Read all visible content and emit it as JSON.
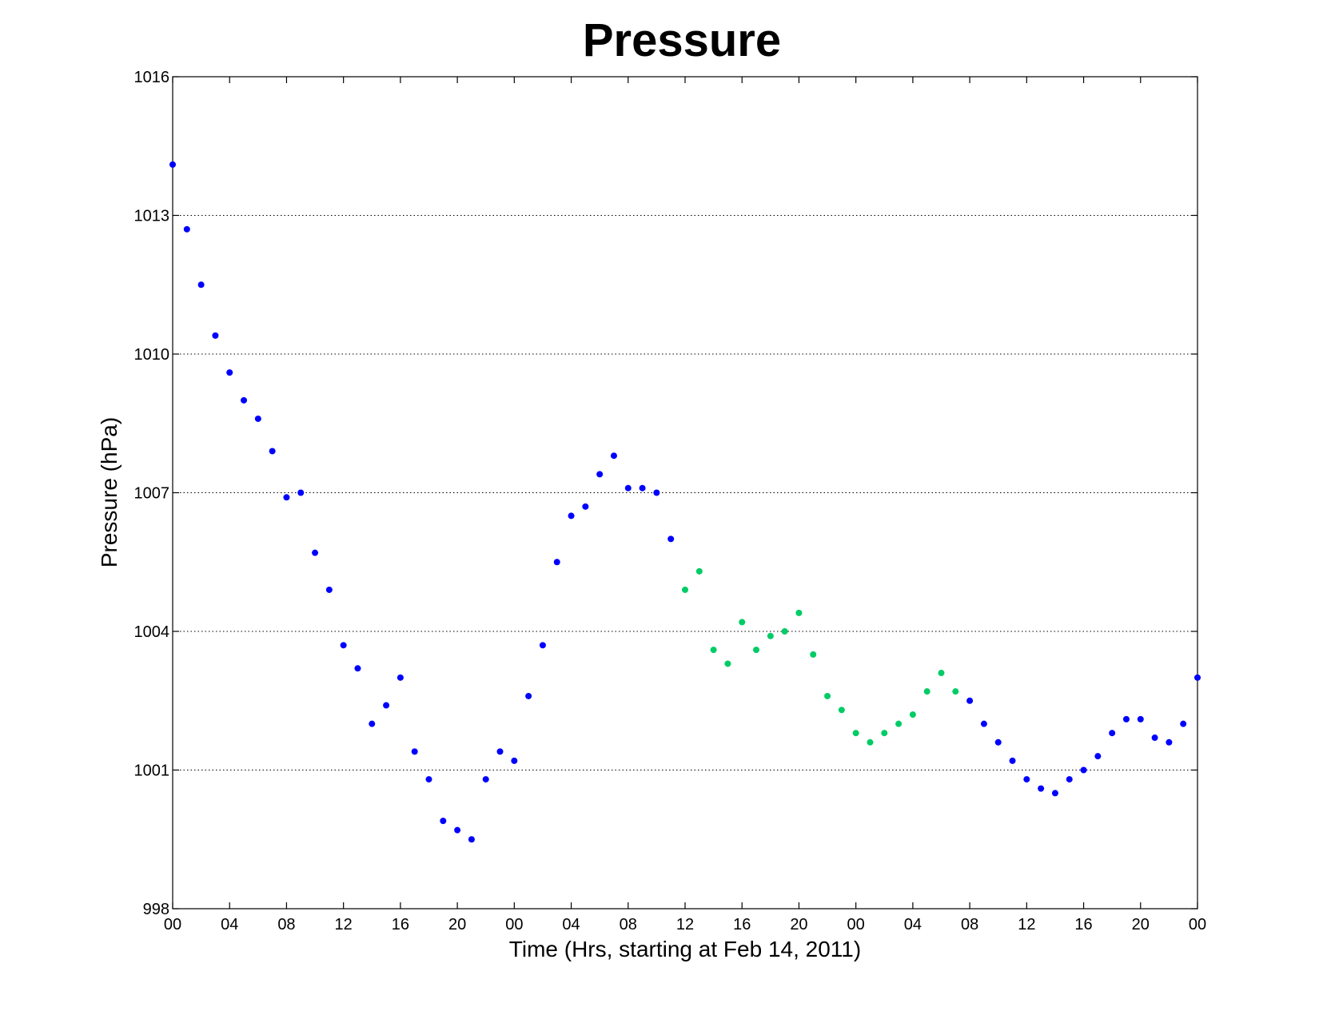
{
  "chart_data": {
    "type": "scatter",
    "title": "Pressure",
    "xlabel": "Time (Hrs, starting at Feb 14, 2011)",
    "ylabel": "Pressure (hPa)",
    "xlim": [
      0,
      72
    ],
    "ylim": [
      998,
      1016
    ],
    "x_ticks": [
      {
        "hour": 0,
        "label": "00"
      },
      {
        "hour": 4,
        "label": "04"
      },
      {
        "hour": 8,
        "label": "08"
      },
      {
        "hour": 12,
        "label": "12"
      },
      {
        "hour": 16,
        "label": "16"
      },
      {
        "hour": 20,
        "label": "20"
      },
      {
        "hour": 24,
        "label": "00"
      },
      {
        "hour": 28,
        "label": "04"
      },
      {
        "hour": 32,
        "label": "08"
      },
      {
        "hour": 36,
        "label": "12"
      },
      {
        "hour": 40,
        "label": "16"
      },
      {
        "hour": 44,
        "label": "20"
      },
      {
        "hour": 48,
        "label": "00"
      },
      {
        "hour": 52,
        "label": "04"
      },
      {
        "hour": 56,
        "label": "08"
      },
      {
        "hour": 60,
        "label": "12"
      },
      {
        "hour": 64,
        "label": "16"
      },
      {
        "hour": 68,
        "label": "20"
      },
      {
        "hour": 72,
        "label": "00"
      }
    ],
    "y_ticks": [
      998,
      1001,
      1004,
      1007,
      1010,
      1013,
      1016
    ],
    "y_grid": [
      1001,
      1004,
      1007,
      1010,
      1013
    ],
    "series": [
      {
        "color": "#0000ff",
        "points": [
          [
            0,
            1014.1
          ],
          [
            1,
            1012.7
          ],
          [
            2,
            1011.5
          ],
          [
            3,
            1010.4
          ],
          [
            4,
            1009.6
          ],
          [
            5,
            1009.0
          ],
          [
            6,
            1008.6
          ],
          [
            7,
            1007.9
          ],
          [
            8,
            1006.9
          ],
          [
            9,
            1007.0
          ],
          [
            10,
            1005.7
          ],
          [
            11,
            1004.9
          ],
          [
            12,
            1003.7
          ],
          [
            13,
            1003.2
          ],
          [
            14,
            1002.0
          ],
          [
            15,
            1002.4
          ],
          [
            16,
            1003.0
          ],
          [
            17,
            1001.4
          ],
          [
            18,
            1000.8
          ],
          [
            19,
            999.9
          ],
          [
            20,
            999.7
          ],
          [
            21,
            999.5
          ],
          [
            22,
            1000.8
          ],
          [
            23,
            1001.4
          ],
          [
            24,
            1001.2
          ],
          [
            25,
            1002.6
          ],
          [
            26,
            1003.7
          ],
          [
            27,
            1005.5
          ],
          [
            28,
            1006.5
          ],
          [
            29,
            1006.7
          ],
          [
            30,
            1007.4
          ],
          [
            31,
            1007.8
          ],
          [
            32,
            1007.1
          ],
          [
            33,
            1007.1
          ],
          [
            34,
            1007.0
          ],
          [
            35,
            1006.0
          ],
          [
            56,
            1002.5
          ],
          [
            57,
            1002.0
          ],
          [
            58,
            1001.6
          ],
          [
            59,
            1001.2
          ],
          [
            60,
            1000.8
          ],
          [
            61,
            1000.6
          ],
          [
            62,
            1000.5
          ],
          [
            63,
            1000.8
          ],
          [
            64,
            1001.0
          ],
          [
            65,
            1001.3
          ],
          [
            66,
            1001.8
          ],
          [
            67,
            1002.1
          ],
          [
            68,
            1002.1
          ],
          [
            69,
            1001.7
          ],
          [
            70,
            1001.6
          ],
          [
            71,
            1002.0
          ],
          [
            72,
            1003.0
          ]
        ]
      },
      {
        "color": "#00cc66",
        "points": [
          [
            36,
            1004.9
          ],
          [
            37,
            1005.3
          ],
          [
            38,
            1003.6
          ],
          [
            39,
            1003.3
          ],
          [
            40,
            1004.2
          ],
          [
            41,
            1003.6
          ],
          [
            42,
            1003.9
          ],
          [
            43,
            1004.0
          ],
          [
            44,
            1004.4
          ],
          [
            45,
            1003.5
          ],
          [
            46,
            1002.6
          ],
          [
            47,
            1002.3
          ],
          [
            48,
            1001.8
          ],
          [
            49,
            1001.6
          ],
          [
            50,
            1001.8
          ],
          [
            51,
            1002.0
          ],
          [
            52,
            1002.2
          ],
          [
            53,
            1002.7
          ],
          [
            54,
            1003.1
          ],
          [
            55,
            1002.7
          ]
        ]
      }
    ]
  }
}
